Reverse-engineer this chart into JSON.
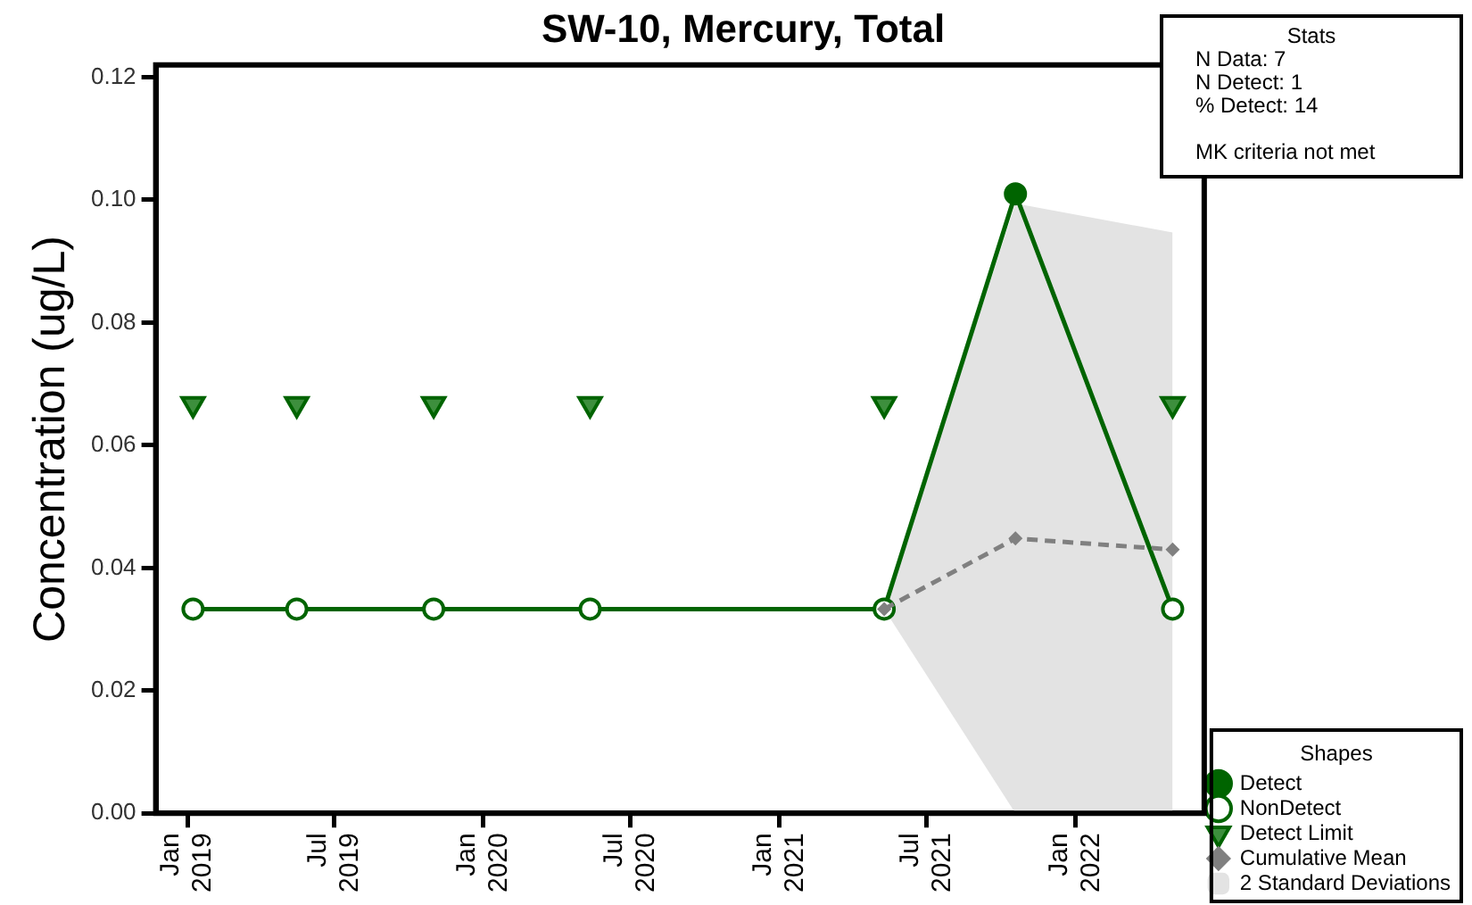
{
  "chart_data": {
    "type": "line",
    "title": "SW-10, Mercury, Total",
    "ylabel": "Concentration (ug/L)",
    "legend_title": "Shapes",
    "legend": "bottom right",
    "xlim": [
      "2018-11-23",
      "2022-06-09"
    ],
    "xticks": [
      {
        "value": "2019-01-01",
        "label": "Jan 2019"
      },
      {
        "value": "2019-07-01",
        "label": "Jul 2019"
      },
      {
        "value": "2020-01-01",
        "label": "Jan 2020"
      },
      {
        "value": "2020-07-01",
        "label": "Jul 2020"
      },
      {
        "value": "2021-01-01",
        "label": "Jan 2021"
      },
      {
        "value": "2021-07-01",
        "label": "Jul 2021"
      },
      {
        "value": "2022-01-01",
        "label": "Jan 2022"
      }
    ],
    "ylim": [
      0,
      0.122
    ],
    "yticks": [
      {
        "value": 0,
        "label": "0.00"
      },
      {
        "value": 0.02,
        "label": "0.02"
      },
      {
        "value": 0.04,
        "label": "0.04"
      },
      {
        "value": 0.06,
        "label": "0.06"
      },
      {
        "value": 0.08,
        "label": "0.08"
      },
      {
        "value": 0.1,
        "label": "0.10"
      },
      {
        "value": 0.12,
        "label": "0.12"
      }
    ],
    "annotations": [
      "Stats",
      "N Data: 7",
      "N Detect: 1",
      "% Detect: 14",
      "MK criteria not met"
    ],
    "series": [
      {
        "type": "line",
        "color": "#006400",
        "marker": "none",
        "x": [
          "2019-01-08",
          "2019-05-16",
          "2019-11-01",
          "2020-05-12",
          "2021-05-10",
          "2021-10-19",
          "2022-05-01"
        ],
        "values": [
          0.0333,
          0.0333,
          0.0333,
          0.0333,
          0.0333,
          0.101,
          0.0333
        ]
      },
      {
        "type": "scatter",
        "name": "Detect",
        "color": "#006400",
        "marker": "circle",
        "x": [
          "2021-10-19"
        ],
        "values": [
          0.101
        ]
      },
      {
        "type": "scatter",
        "name": "NonDetect",
        "color": "#006400",
        "marker": "circle",
        "x": [
          "2019-01-08",
          "2019-05-16",
          "2019-11-01",
          "2020-05-12",
          "2021-05-10",
          "2022-05-01"
        ],
        "values": [
          0.0333,
          0.0333,
          0.0333,
          0.0333,
          0.0333,
          0.0333
        ]
      },
      {
        "type": "scatter",
        "name": "Detect Limit",
        "color": "#006400",
        "marker": "triangle",
        "x": [
          "2019-01-08",
          "2019-05-16",
          "2019-11-01",
          "2020-05-12",
          "2021-05-10",
          "2022-05-01"
        ],
        "values": [
          0.0667,
          0.0667,
          0.0667,
          0.0667,
          0.0667,
          0.0667
        ]
      },
      {
        "type": "line",
        "name": "Cumulative Mean",
        "color": "#808080",
        "marker": "diamond",
        "line_style": "dashed",
        "x": [
          "2021-05-10",
          "2021-10-19",
          "2022-05-01"
        ],
        "values": [
          0.0333,
          0.0448,
          0.043
        ]
      },
      {
        "type": "area",
        "name": "2 Standard Deviations",
        "color": "#e3e3e3",
        "x": [
          "2021-05-10",
          "2021-10-19",
          "2022-05-01"
        ],
        "values": [
          null,
          null,
          null
        ],
        "lower": [
          0.0333,
          0,
          0
        ],
        "upper": [
          0.0333,
          0.0994,
          0.0947
        ]
      }
    ]
  }
}
